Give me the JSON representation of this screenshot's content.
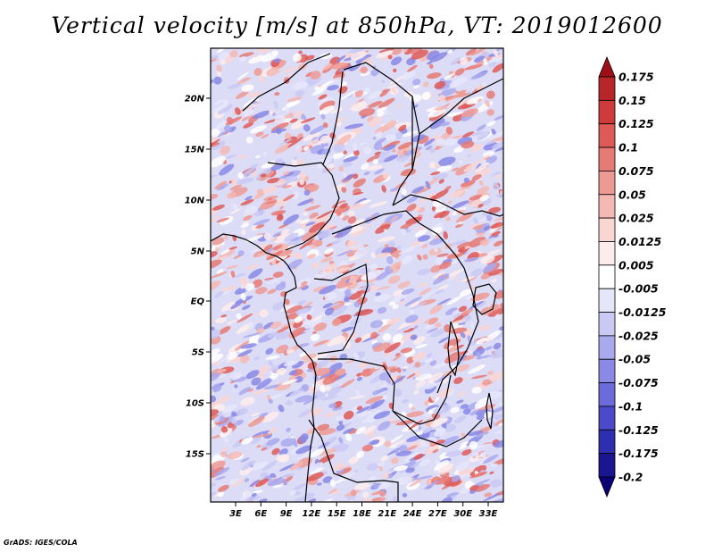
{
  "title": "Vertical velocity [m/s] at 850hPa, VT: 2019012600",
  "credit": "GrADS: IGES/COLA",
  "map": {
    "lat_labels": [
      "20N",
      "15N",
      "10N",
      "5N",
      "EQ",
      "5S",
      "10S",
      "15S"
    ],
    "lon_labels": [
      "3E",
      "6E",
      "9E",
      "12E",
      "15E",
      "18E",
      "21E",
      "24E",
      "27E",
      "30E",
      "33E"
    ]
  },
  "colorbar": {
    "labels": [
      "0.175",
      "0.15",
      "0.125",
      "0.1",
      "0.075",
      "0.05",
      "0.025",
      "0.0125",
      "0.005",
      "-0.005",
      "-0.0125",
      "-0.025",
      "-0.05",
      "-0.075",
      "-0.1",
      "-0.125",
      "-0.175",
      "-0.2"
    ],
    "colors": [
      "#9e0f16",
      "#b8262a",
      "#cf3b3b",
      "#de5a57",
      "#e67a74",
      "#ee9a94",
      "#f5b9b4",
      "#fad6d3",
      "#fdeceb",
      "#ffffff",
      "#e6e6fb",
      "#c9c9f4",
      "#a9a9ee",
      "#8a8ae6",
      "#6b6bdc",
      "#4a4acb",
      "#2e2eb0",
      "#1a1590",
      "#0a0075"
    ]
  }
}
